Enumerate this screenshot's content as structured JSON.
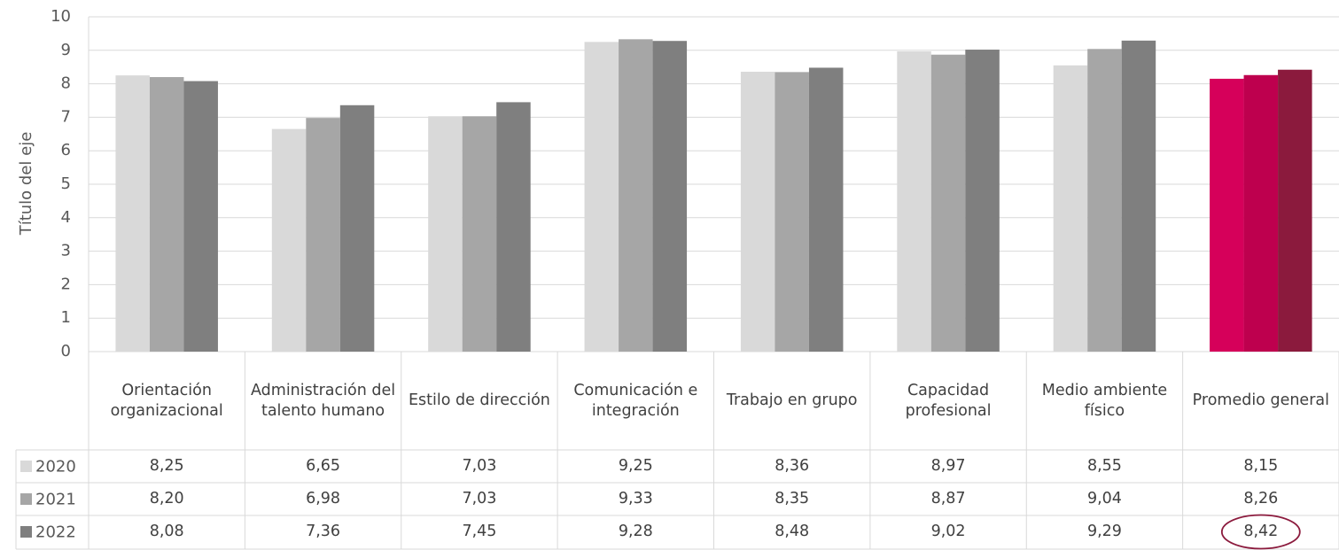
{
  "chart_data": {
    "type": "bar",
    "y_axis_label": "Título del eje",
    "categories": [
      "Orientación organizacional",
      "Administración del talento humano",
      "Estilo de dirección",
      "Comunicación e integración",
      "Trabajo en grupo",
      "Capacidad profesional",
      "Medio ambiente físico",
      "Promedio general"
    ],
    "series": [
      {
        "name": "2020",
        "color": "#d9d9d9",
        "highlight_color": "#d6005a",
        "values": [
          8.25,
          6.65,
          7.03,
          9.25,
          8.36,
          8.97,
          8.55,
          8.15
        ],
        "value_labels": [
          "8,25",
          "6,65",
          "7,03",
          "9,25",
          "8,36",
          "8,97",
          "8,55",
          "8,15"
        ]
      },
      {
        "name": "2021",
        "color": "#a6a6a6",
        "highlight_color": "#be004e",
        "values": [
          8.2,
          6.98,
          7.03,
          9.33,
          8.35,
          8.87,
          9.04,
          8.26
        ],
        "value_labels": [
          "8,20",
          "6,98",
          "7,03",
          "9,33",
          "8,35",
          "8,87",
          "9,04",
          "8,26"
        ]
      },
      {
        "name": "2022",
        "color": "#7f7f7f",
        "highlight_color": "#8b1a3d",
        "values": [
          8.08,
          7.36,
          7.45,
          9.28,
          8.48,
          9.02,
          9.29,
          8.42
        ],
        "value_labels": [
          "8,08",
          "7,36",
          "7,45",
          "9,28",
          "8,48",
          "9,02",
          "9,29",
          "8,42"
        ]
      }
    ],
    "ylim": [
      0,
      10
    ],
    "yticks": [
      0,
      1,
      2,
      3,
      4,
      5,
      6,
      7,
      8,
      9,
      10
    ],
    "grid": true
  }
}
